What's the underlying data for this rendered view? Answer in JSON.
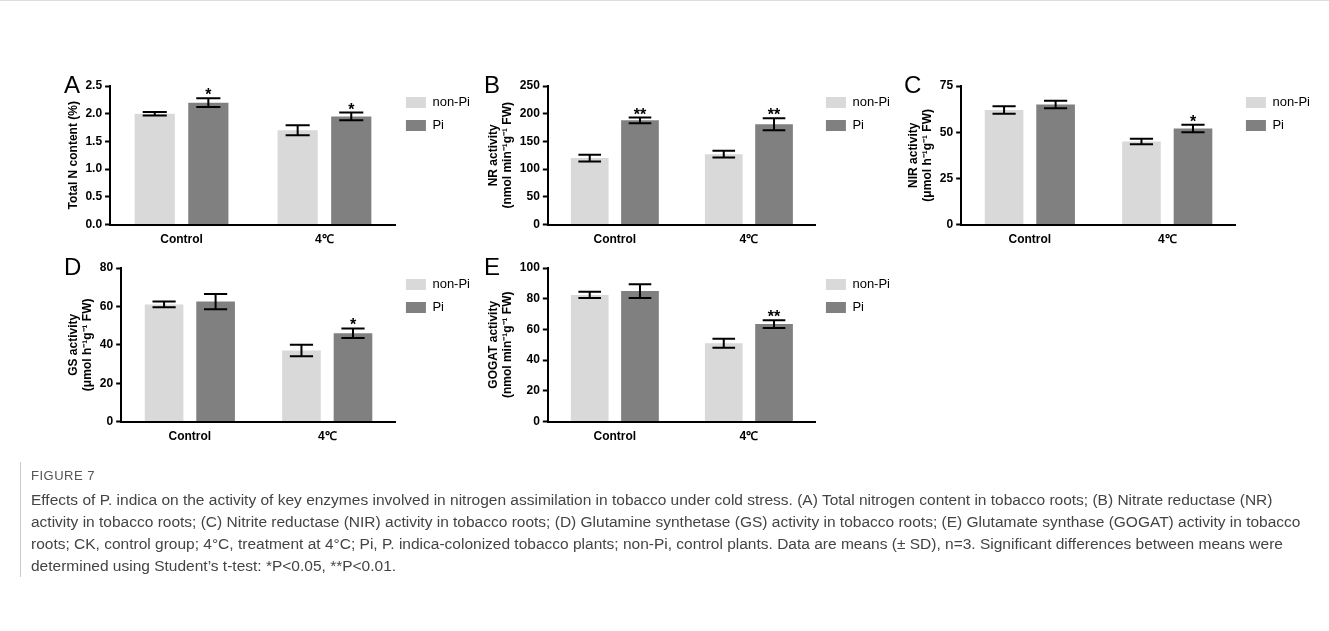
{
  "chart_data": [
    {
      "type": "bar",
      "title": "A",
      "ylabel": "Total N content (%)",
      "categories": [
        "Control",
        "4℃"
      ],
      "ylim": [
        0,
        2.5
      ],
      "yticks": [
        {
          "value": 0,
          "label": "0.0"
        },
        {
          "value": 0.5,
          "label": "0.5"
        },
        {
          "value": 1,
          "label": "1.0"
        },
        {
          "value": 1.5,
          "label": "1.5"
        },
        {
          "value": 2,
          "label": "2.0"
        },
        {
          "value": 2.5,
          "label": "2.5"
        }
      ],
      "grid": false,
      "legend": "top right",
      "series": [
        {
          "name": "non-Pi",
          "color": "#d9d9d9",
          "values": [
            2.0,
            1.7
          ],
          "errors": [
            0.03,
            0.09
          ]
        },
        {
          "name": "Pi",
          "color": "#808080",
          "values": [
            2.2,
            1.95
          ],
          "errors": [
            0.08,
            0.07
          ],
          "value_labels": [
            "*",
            "*"
          ]
        }
      ]
    },
    {
      "type": "bar",
      "title": "B",
      "ylabel": "NR activity\n(nmol min⁻¹g⁻¹ FW)",
      "categories": [
        "Control",
        "4℃"
      ],
      "ylim": [
        0,
        250
      ],
      "yticks": [
        0,
        50,
        100,
        150,
        200,
        250
      ],
      "grid": false,
      "legend": "top right",
      "series": [
        {
          "name": "non-Pi",
          "color": "#d9d9d9",
          "values": [
            120,
            127
          ],
          "errors": [
            6,
            6
          ]
        },
        {
          "name": "Pi",
          "color": "#808080",
          "values": [
            188,
            181
          ],
          "errors": [
            5,
            11
          ],
          "value_labels": [
            "**",
            "**"
          ]
        }
      ]
    },
    {
      "type": "bar",
      "title": "C",
      "ylabel": "NIR activity\n(μmol h⁻¹g⁻¹ FW)",
      "categories": [
        "Control",
        "4℃"
      ],
      "ylim": [
        0,
        75
      ],
      "yticks": [
        0,
        25,
        50,
        75
      ],
      "grid": false,
      "legend": "top right",
      "series": [
        {
          "name": "non-Pi",
          "color": "#d9d9d9",
          "values": [
            62,
            45
          ],
          "errors": [
            2,
            1.5
          ]
        },
        {
          "name": "Pi",
          "color": "#808080",
          "values": [
            65,
            52
          ],
          "errors": [
            2,
            2
          ],
          "value_labels": [
            null,
            "*"
          ]
        }
      ]
    },
    {
      "type": "bar",
      "title": "D",
      "ylabel": "GS activity\n(μmol h⁻¹g⁻¹ FW)",
      "categories": [
        "Control",
        "4℃"
      ],
      "ylim": [
        0,
        80
      ],
      "yticks": [
        0,
        20,
        40,
        60,
        80
      ],
      "grid": false,
      "legend": "top right",
      "series": [
        {
          "name": "non-Pi",
          "color": "#d9d9d9",
          "values": [
            61,
            37
          ],
          "errors": [
            1.5,
            3
          ]
        },
        {
          "name": "Pi",
          "color": "#808080",
          "values": [
            62.5,
            46
          ],
          "errors": [
            4,
            2.5
          ],
          "value_labels": [
            null,
            "*"
          ]
        }
      ]
    },
    {
      "type": "bar",
      "title": "E",
      "ylabel": "GOGAT activity\n(nmol min⁻¹g⁻¹ FW)",
      "categories": [
        "Control",
        "4℃"
      ],
      "ylim": [
        0,
        100
      ],
      "yticks": [
        0,
        20,
        40,
        60,
        80,
        100
      ],
      "grid": false,
      "legend": "top right",
      "series": [
        {
          "name": "non-Pi",
          "color": "#d9d9d9",
          "values": [
            82.5,
            51
          ],
          "errors": [
            2,
            3
          ]
        },
        {
          "name": "Pi",
          "color": "#808080",
          "values": [
            85,
            63.5
          ],
          "errors": [
            4.5,
            2.5
          ],
          "value_labels": [
            null,
            "**"
          ]
        }
      ]
    },
    {
      "type": "other",
      "title": "FIGURE 7",
      "annotations": [
        "Effects of P. indica on the activity of key enzymes involved in nitrogen assimilation in tobacco under cold stress. (A) Total nitrogen content in tobacco roots; (B) Nitrate reductase (NR) activity in tobacco roots; (C) Nitrite reductase (NIR) activity in tobacco roots; (D) Glutamine synthetase (GS) activity in tobacco roots; (E) Glutamate synthase (GOGAT) activity in tobacco roots; CK, control group; 4°C, treatment at 4°C; Pi, P. indica-colonized tobacco plants; non-Pi, control plants. Data are means (± SD), n=3. Significant differences between means were determined using Student’s t-test: *P<0.05, **P<0.01."
      ]
    }
  ]
}
